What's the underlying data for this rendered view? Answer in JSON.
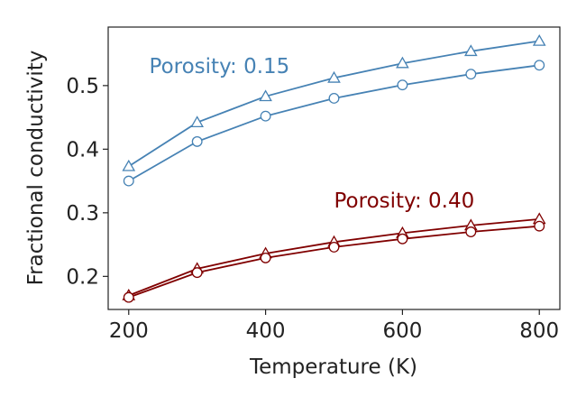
{
  "chart_data": {
    "type": "line",
    "xlabel": "Temperature (K)",
    "ylabel": "Fractional conductivity",
    "xlim": [
      170,
      830
    ],
    "ylim": [
      0.148,
      0.592
    ],
    "xticks": [
      200,
      400,
      600,
      800
    ],
    "yticks": [
      0.2,
      0.3,
      0.4,
      0.5
    ],
    "x_tick_labels": [
      "200",
      "400",
      "600",
      "800"
    ],
    "y_tick_labels": [
      "0.2",
      "0.3",
      "0.4",
      "0.5"
    ],
    "grid": false,
    "x": [
      200,
      300,
      400,
      500,
      600,
      700,
      800
    ],
    "series": [
      {
        "group": 0.15,
        "marker": "triangle",
        "color": "#4682b4",
        "values": [
          0.373,
          0.442,
          0.483,
          0.512,
          0.535,
          0.554,
          0.57
        ]
      },
      {
        "group": 0.15,
        "marker": "circle",
        "color": "#4682b4",
        "values": [
          0.35,
          0.412,
          0.452,
          0.48,
          0.501,
          0.518,
          0.532
        ]
      },
      {
        "group": 0.4,
        "marker": "triangle",
        "color": "#800000",
        "values": [
          0.17,
          0.212,
          0.236,
          0.254,
          0.268,
          0.28,
          0.29
        ]
      },
      {
        "group": 0.4,
        "marker": "circle",
        "color": "#800000",
        "values": [
          0.167,
          0.206,
          0.229,
          0.246,
          0.259,
          0.27,
          0.279
        ]
      }
    ],
    "annotations": [
      {
        "text": "Porosity: 0.15",
        "x": 230,
        "y": 0.52,
        "color": "#4682b4"
      },
      {
        "text": "Porosity: 0.40",
        "x": 500,
        "y": 0.308,
        "color": "#800000"
      }
    ]
  }
}
